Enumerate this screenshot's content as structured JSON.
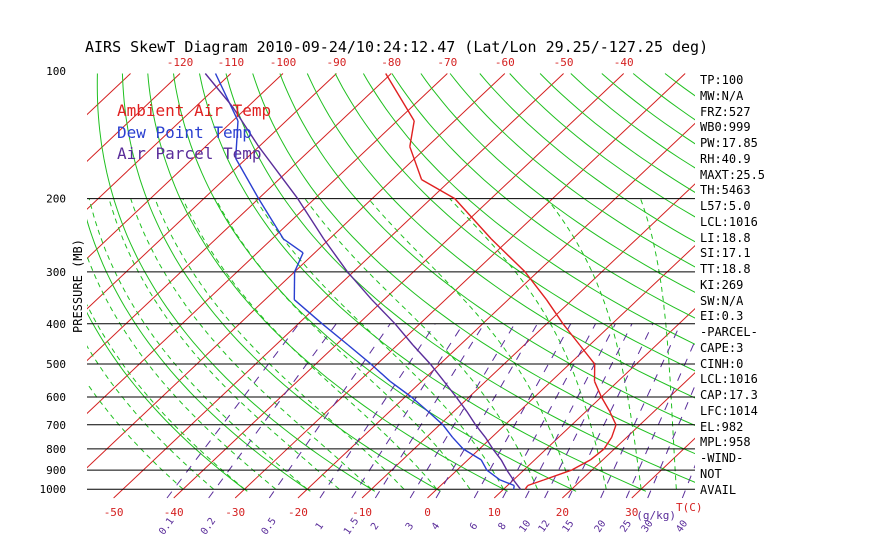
{
  "chart_data": {
    "type": "line",
    "title": "AIRS SkewT Diagram 2010-09-24/10:24:12.47 (Lat/Lon 29.25/-127.25 deg)",
    "ylabel": "PRESSURE (MB)",
    "xlabel_right": "T(C)",
    "mixing_ratio_unit": "(g/kg)",
    "y_scale": "log",
    "ylim": [
      1050,
      100
    ],
    "xlim_bottom": [
      -53,
      40
    ],
    "pressure_ticks": [
      100,
      200,
      300,
      400,
      500,
      600,
      700,
      800,
      900,
      1000
    ],
    "pressure_lines": [
      200,
      300,
      400,
      500,
      600,
      700,
      800,
      900,
      1000
    ],
    "top_ticks": [
      -120,
      -110,
      -100,
      -90,
      -80,
      -70,
      -60,
      -50,
      -40
    ],
    "bottom_ticks": [
      -50,
      -40,
      -30,
      -20,
      -10,
      0,
      10,
      20,
      30
    ],
    "mixing_ratio_ticks": [
      "0.1",
      "0.2",
      "0.5",
      "1",
      "1.5",
      "2",
      "3",
      "4",
      "6",
      "8",
      "10",
      "12",
      "15",
      "20",
      "25",
      "30",
      "40"
    ],
    "legend": [
      {
        "label": "Ambient Air Temp",
        "color": "#e02020"
      },
      {
        "label": "Dew Point Temp",
        "color": "#2a3fd0"
      },
      {
        "label": "Air Parcel Temp",
        "color": "#5a2d9a"
      }
    ],
    "series": [
      {
        "name": "Ambient Air Temp",
        "color": "#e02020",
        "points": [
          [
            1000,
            13.2
          ],
          [
            980,
            13.0
          ],
          [
            950,
            14.5
          ],
          [
            900,
            17.0
          ],
          [
            850,
            18.2
          ],
          [
            800,
            18.5
          ],
          [
            750,
            17.8
          ],
          [
            700,
            16.5
          ],
          [
            650,
            13.5
          ],
          [
            600,
            10.0
          ],
          [
            550,
            6.5
          ],
          [
            500,
            3.8
          ],
          [
            450,
            -1.5
          ],
          [
            400,
            -7.5
          ],
          [
            350,
            -14.0
          ],
          [
            300,
            -22.0
          ],
          [
            250,
            -33.0
          ],
          [
            200,
            -46.0
          ],
          [
            180,
            -55.0
          ],
          [
            150,
            -63.0
          ],
          [
            130,
            -67.0
          ],
          [
            100,
            -81.0
          ]
        ]
      },
      {
        "name": "Dew Point Temp",
        "color": "#2a3fd0",
        "points": [
          [
            1000,
            11.5
          ],
          [
            980,
            11.0
          ],
          [
            950,
            8.0
          ],
          [
            900,
            4.5
          ],
          [
            850,
            2.0
          ],
          [
            800,
            -2.5
          ],
          [
            750,
            -6.0
          ],
          [
            700,
            -9.5
          ],
          [
            650,
            -14.0
          ],
          [
            600,
            -19.0
          ],
          [
            550,
            -25.0
          ],
          [
            500,
            -31.0
          ],
          [
            450,
            -38.0
          ],
          [
            400,
            -46.0
          ],
          [
            350,
            -55.0
          ],
          [
            300,
            -60.0
          ],
          [
            270,
            -62.0
          ],
          [
            250,
            -68.0
          ],
          [
            200,
            -80.0
          ],
          [
            160,
            -92.0
          ],
          [
            130,
            -99.0
          ],
          [
            100,
            -113.0
          ]
        ]
      },
      {
        "name": "Air Parcel Temp",
        "color": "#5a2d9a",
        "points": [
          [
            1000,
            12.5
          ],
          [
            950,
            10.0
          ],
          [
            900,
            7.5
          ],
          [
            850,
            5.0
          ],
          [
            800,
            2.0
          ],
          [
            750,
            -1.0
          ],
          [
            700,
            -4.5
          ],
          [
            650,
            -8.0
          ],
          [
            600,
            -12.0
          ],
          [
            550,
            -16.5
          ],
          [
            500,
            -21.5
          ],
          [
            450,
            -27.5
          ],
          [
            400,
            -34.0
          ],
          [
            350,
            -42.0
          ],
          [
            300,
            -51.0
          ],
          [
            250,
            -61.0
          ],
          [
            200,
            -73.0
          ],
          [
            150,
            -90.0
          ],
          [
            120,
            -103.0
          ],
          [
            100,
            -115.0
          ]
        ]
      }
    ]
  },
  "stats": [
    "TP:100",
    "MW:N/A",
    "FRZ:527",
    "WB0:999",
    "PW:17.85",
    "RH:40.9",
    "MAXT:25.5",
    "TH:5463",
    "L57:5.0",
    "LCL:1016",
    "LI:18.8",
    "SI:17.1",
    "TT:18.8",
    "KI:269",
    "SW:N/A",
    "EI:0.3",
    "-PARCEL-",
    "CAPE:3",
    "CINH:0",
    "LCL:1016",
    "CAP:17.3",
    "LFC:1014",
    "EL:982",
    "MPL:958",
    "-WIND-",
    "NOT",
    "AVAIL"
  ],
  "colors": {
    "isotherm": "#d42020",
    "dry_adiabat": "#20c020",
    "moist_adiabat": "#20c020",
    "mixing_ratio": "#5a2d9a",
    "tick_red": "#d42020",
    "tick_purple": "#5a2d9a"
  }
}
